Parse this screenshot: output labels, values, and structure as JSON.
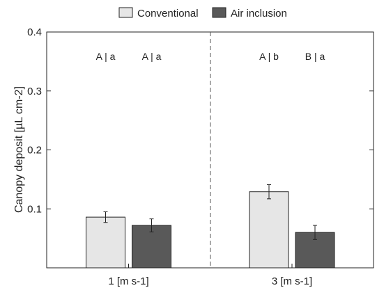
{
  "chart_data": {
    "type": "bar",
    "categories": [
      "1 [m s-1]",
      "3 [m s-1]"
    ],
    "series": [
      {
        "name": "Conventional",
        "color": "#e6e6e6",
        "values": [
          0.086,
          0.129
        ],
        "errors": [
          0.009,
          0.012
        ]
      },
      {
        "name": "Air inclusion",
        "color": "#595959",
        "values": [
          0.072,
          0.06
        ],
        "errors": [
          0.011,
          0.012
        ]
      }
    ],
    "ylabel": "Canopy deposit [µL cm-2]",
    "ylim": [
      0,
      0.4
    ],
    "yticks": [
      {
        "value": 0.1,
        "label": "0.1"
      },
      {
        "value": 0.2,
        "label": "0.2"
      },
      {
        "value": 0.3,
        "label": "0.3"
      },
      {
        "value": 0.4,
        "label": "0.4"
      }
    ],
    "grid": false,
    "legend": "top-center",
    "annotations": [
      [
        "A | a",
        "A | a"
      ],
      [
        "A | b",
        "B | a"
      ]
    ]
  }
}
